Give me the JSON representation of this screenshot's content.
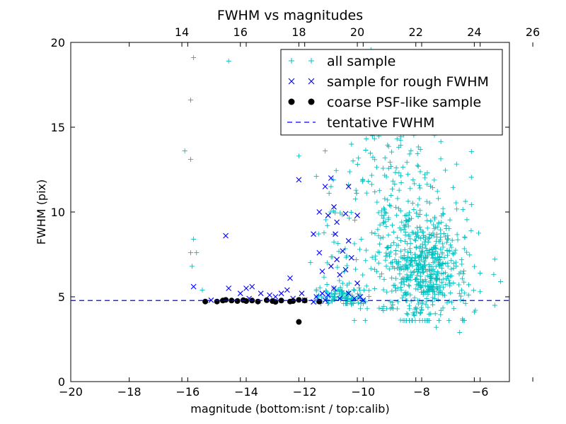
{
  "chart_data": {
    "type": "scatter",
    "title": "FWHM vs magnitudes",
    "xlabel": "magnitude (bottom:isnt / top:calib)",
    "ylabel": "FWHM (pix)",
    "xlim": [
      -20,
      -5
    ],
    "ylim": [
      0,
      20
    ],
    "x_ticks": [
      -20,
      -18,
      -16,
      -14,
      -12,
      -10,
      -8,
      -6
    ],
    "x_tick_labels": [
      "−20",
      "−18",
      "−16",
      "−14",
      "−12",
      "−10",
      "−8",
      "−6"
    ],
    "y_ticks": [
      0,
      5,
      10,
      15,
      20
    ],
    "y_tick_labels": [
      "0",
      "5",
      "10",
      "15",
      "20"
    ],
    "top_axis": {
      "offset": 30.2,
      "ticks": [
        14,
        16,
        18,
        20,
        22,
        24,
        26
      ],
      "tick_labels": [
        "14",
        "16",
        "18",
        "20",
        "22",
        "24",
        "26"
      ]
    },
    "grid": false,
    "legend_position": "top-right",
    "series": [
      {
        "name": "all sample",
        "marker": "plus",
        "color": "#00bfbf",
        "generated": {
          "seed": 7,
          "clusters": [
            {
              "count": 520,
              "x_mean": -7.9,
              "x_sd": 0.75,
              "y_mean": 6.6,
              "y_sd": 1.6,
              "x_min": -10.3,
              "x_max": -5.5,
              "y_min": 3.6,
              "y_max": 12.5
            },
            {
              "count": 230,
              "x_mean": -8.8,
              "x_sd": 1.0,
              "y_mean": 10.5,
              "y_sd": 3.2,
              "x_min": -11.5,
              "x_max": -6.3,
              "y_min": 4.3,
              "y_max": 19.8
            },
            {
              "count": 90,
              "x_mean": -10.7,
              "x_sd": 0.45,
              "y_mean": 5.0,
              "y_sd": 0.35,
              "x_min": -11.6,
              "x_max": -9.8,
              "y_min": 4.6,
              "y_max": 5.8
            },
            {
              "count": 40,
              "x_mean": -10.8,
              "x_sd": 0.5,
              "y_mean": 7.5,
              "y_sd": 2.5,
              "x_min": -11.8,
              "x_max": -9.8,
              "y_min": 5.0,
              "y_max": 14.0
            }
          ]
        },
        "points": [
          [
            -15.8,
            19.1
          ],
          [
            -14.6,
            18.9
          ],
          [
            -15.9,
            16.6
          ],
          [
            -16.1,
            13.6
          ],
          [
            -15.9,
            13.1
          ],
          [
            -15.8,
            8.4
          ],
          [
            -15.9,
            7.6
          ],
          [
            -15.7,
            7.6
          ],
          [
            -15.85,
            6.8
          ],
          [
            -15.5,
            5.4
          ],
          [
            -12.2,
            13.3
          ],
          [
            -11.3,
            13.6
          ],
          [
            -11.6,
            12.1
          ],
          [
            -11.1,
            11.5
          ],
          [
            -10.5,
            11.6
          ],
          [
            -5.3,
            5.9
          ],
          [
            -5.5,
            4.5
          ],
          [
            -6.0,
            5.3
          ],
          [
            -6.0,
            6.4
          ],
          [
            -6.4,
            5.1
          ],
          [
            -6.7,
            2.9
          ],
          [
            -7.5,
            3.2
          ],
          [
            -6.2,
            4.1
          ],
          [
            -6.5,
            4.6
          ],
          [
            -7.1,
            6.8
          ]
        ]
      },
      {
        "name": "sample for rough FWHM",
        "marker": "x",
        "color": "#0000ff",
        "points": [
          [
            -15.8,
            5.6
          ],
          [
            -14.7,
            8.6
          ],
          [
            -14.6,
            5.5
          ],
          [
            -14.2,
            5.2
          ],
          [
            -14.0,
            5.5
          ],
          [
            -13.5,
            5.2
          ],
          [
            -13.8,
            5.6
          ],
          [
            -13.2,
            5.1
          ],
          [
            -13.0,
            5.0
          ],
          [
            -12.8,
            5.2
          ],
          [
            -12.5,
            6.1
          ],
          [
            -12.6,
            5.4
          ],
          [
            -12.1,
            5.2
          ],
          [
            -11.6,
            5.0
          ],
          [
            -11.4,
            5.2
          ],
          [
            -11.2,
            5.1
          ],
          [
            -11.0,
            5.5
          ],
          [
            -11.4,
            6.5
          ],
          [
            -11.1,
            6.8
          ],
          [
            -10.8,
            6.3
          ],
          [
            -10.6,
            6.6
          ],
          [
            -10.9,
            7.2
          ],
          [
            -10.7,
            7.7
          ],
          [
            -10.5,
            8.3
          ],
          [
            -11.5,
            7.6
          ],
          [
            -10.95,
            8.7
          ],
          [
            -11.2,
            9.8
          ],
          [
            -10.9,
            9.4
          ],
          [
            -11.5,
            10.0
          ],
          [
            -10.6,
            9.9
          ],
          [
            -11.0,
            10.3
          ],
          [
            -11.3,
            11.5
          ],
          [
            -11.1,
            12.0
          ],
          [
            -10.5,
            11.5
          ],
          [
            -12.2,
            11.9
          ],
          [
            -10.2,
            9.8
          ],
          [
            -10.3,
            4.9
          ],
          [
            -10.1,
            5.0
          ],
          [
            -10.5,
            5.2
          ],
          [
            -10.8,
            4.9
          ],
          [
            -10.0,
            4.8
          ],
          [
            -11.7,
            8.7
          ],
          [
            -10.4,
            7.3
          ],
          [
            -12.0,
            4.8
          ],
          [
            -13.9,
            4.9
          ],
          [
            -15.2,
            4.8
          ],
          [
            -12.4,
            4.9
          ],
          [
            -11.7,
            4.7
          ],
          [
            -10.2,
            5.8
          ],
          [
            -11.3,
            4.8
          ]
        ]
      },
      {
        "name": "coarse PSF-like sample",
        "marker": "circle",
        "color": "#000000",
        "points": [
          [
            -15.4,
            4.72
          ],
          [
            -15.0,
            4.72
          ],
          [
            -14.8,
            4.78
          ],
          [
            -14.7,
            4.82
          ],
          [
            -14.5,
            4.78
          ],
          [
            -14.3,
            4.75
          ],
          [
            -14.1,
            4.8
          ],
          [
            -14.0,
            4.75
          ],
          [
            -13.8,
            4.78
          ],
          [
            -13.6,
            4.72
          ],
          [
            -13.3,
            4.8
          ],
          [
            -13.1,
            4.75
          ],
          [
            -13.0,
            4.7
          ],
          [
            -12.8,
            4.78
          ],
          [
            -12.5,
            4.72
          ],
          [
            -12.4,
            4.75
          ],
          [
            -12.2,
            4.82
          ],
          [
            -12.0,
            4.78
          ],
          [
            -11.5,
            4.72
          ],
          [
            -12.2,
            3.52
          ]
        ]
      },
      {
        "name": "tentative FWHM",
        "marker": "dashed-line",
        "color": "#0000ff",
        "y": 4.78
      }
    ]
  }
}
